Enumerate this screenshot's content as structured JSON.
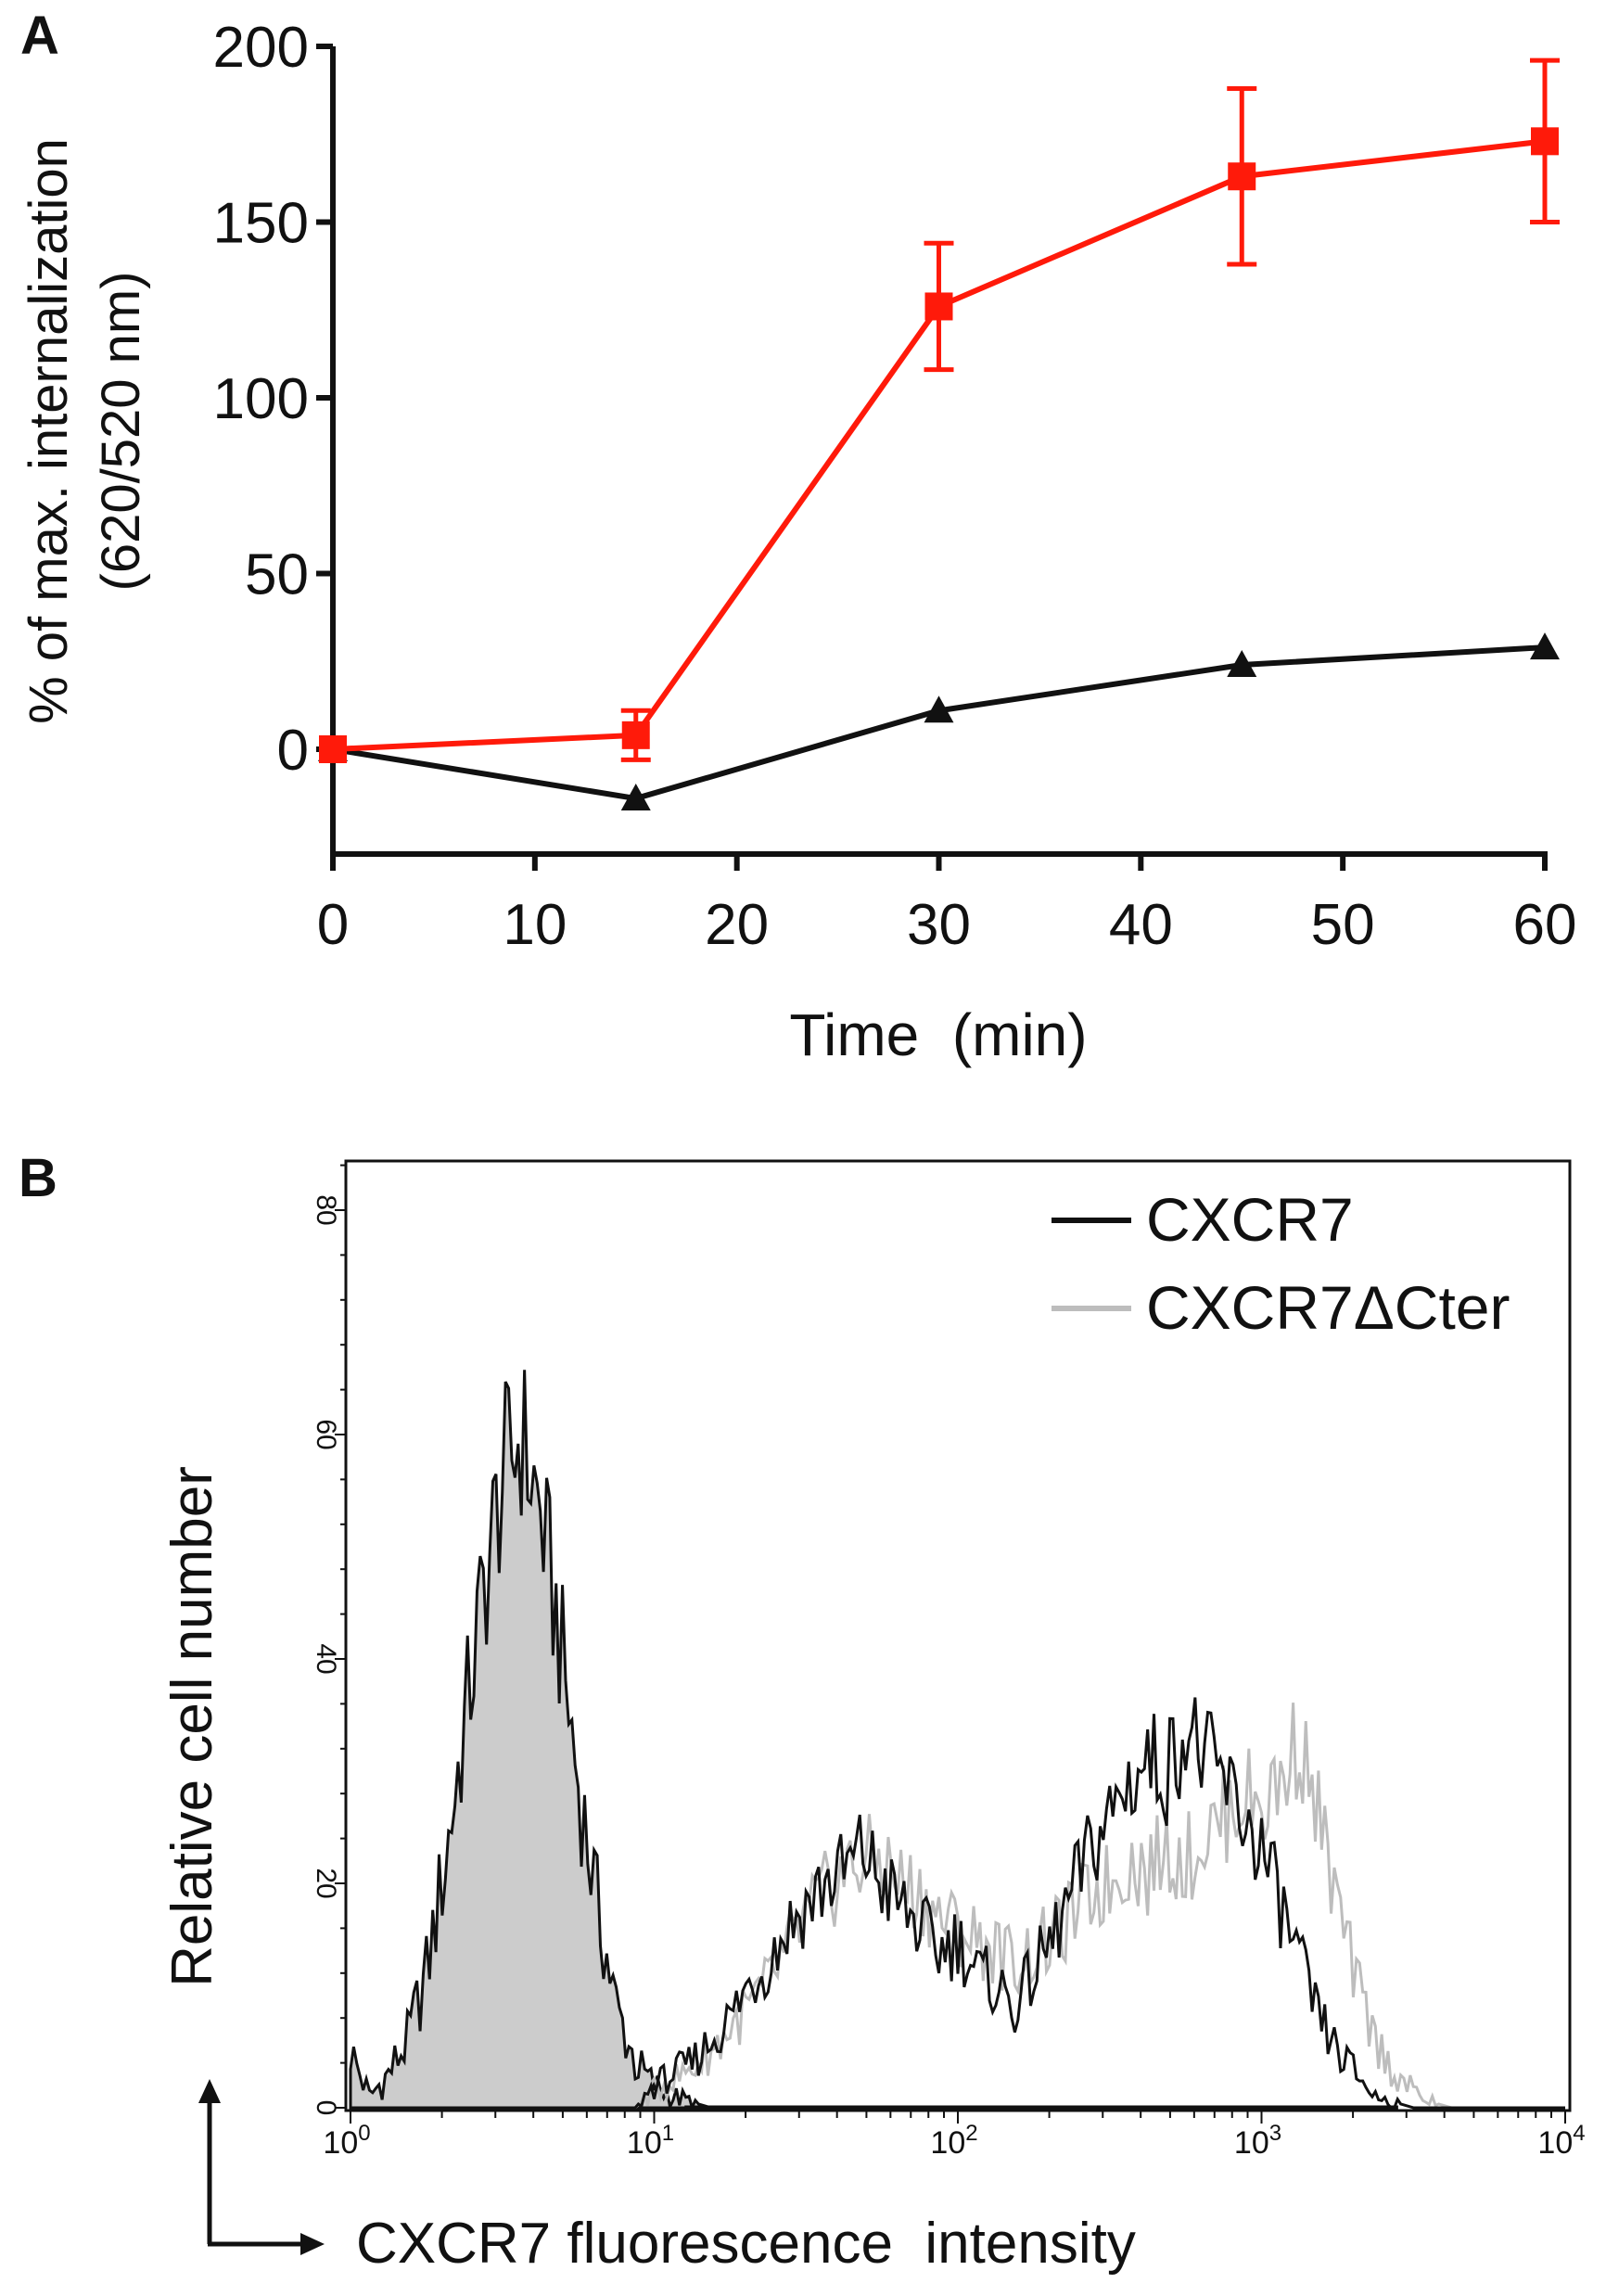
{
  "chart_data": [
    {
      "panel": "A",
      "type": "line",
      "title": "",
      "xlabel": "Time  (min)",
      "ylabel": "% of max. internalization",
      "ylabel2": "(620/520 nm)",
      "xlim": [
        0,
        60
      ],
      "ylim": [
        -30,
        200
      ],
      "xticks": [
        0,
        10,
        20,
        30,
        40,
        50,
        60
      ],
      "yticks": [
        0,
        50,
        100,
        150,
        200
      ],
      "grid": false,
      "x": [
        0,
        15,
        30,
        45,
        60
      ],
      "series": [
        {
          "name": "red series (squares)",
          "color": "#ff1a0a",
          "marker": "square",
          "values": [
            0,
            4,
            126,
            163,
            173
          ],
          "error": [
            0,
            7,
            18,
            25,
            23
          ]
        },
        {
          "name": "black series (triangles)",
          "color": "#111111",
          "marker": "triangle",
          "values": [
            0,
            -14,
            11,
            24,
            29
          ],
          "error": [
            0,
            0,
            0,
            0,
            0
          ]
        }
      ]
    },
    {
      "panel": "B",
      "type": "area",
      "title": "",
      "xlabel": "CXCR7 fluorescence  intensity",
      "ylabel": "Relative cell number",
      "xscale": "log",
      "xlim_log10": [
        0,
        4
      ],
      "ylim": [
        0,
        85
      ],
      "xticks": [
        {
          "base": "10",
          "exp": "0"
        },
        {
          "base": "10",
          "exp": "1"
        },
        {
          "base": "10",
          "exp": "2"
        },
        {
          "base": "10",
          "exp": "3"
        },
        {
          "base": "10",
          "exp": "4"
        }
      ],
      "yticks": [
        "0",
        "20",
        "40",
        "60",
        "80"
      ],
      "legend_position": "top-right",
      "bin_log10_step": 0.0625,
      "control": {
        "name": "control (filled)",
        "fill": "#cccccc",
        "values": [
          5,
          1,
          3,
          6,
          12,
          22,
          34,
          46,
          56,
          60,
          53,
          42,
          29,
          18,
          9,
          4,
          2,
          1,
          0.5,
          0,
          0,
          0,
          0,
          0,
          0,
          0,
          0,
          0,
          0,
          0,
          0,
          0,
          0,
          0,
          0,
          0,
          0,
          0,
          0,
          0,
          0,
          0,
          0,
          0,
          0,
          0,
          0,
          0,
          0,
          0,
          0,
          0,
          0,
          0,
          0,
          0,
          0,
          0,
          0,
          0,
          0,
          0,
          0,
          0,
          0
        ]
      },
      "series": [
        {
          "name": "CXCR7",
          "color": "#111111",
          "values": [
            0,
            0,
            0,
            0,
            0,
            0,
            0,
            0,
            0,
            0,
            0,
            0,
            0,
            0,
            0,
            0,
            2,
            3,
            4,
            6,
            8,
            11,
            13,
            16,
            18,
            20,
            21,
            23,
            20,
            18,
            16,
            14,
            15,
            12,
            11,
            9,
            12,
            15,
            19,
            23,
            26,
            29,
            31,
            30,
            34,
            31,
            29,
            26,
            23,
            18,
            13,
            8,
            5,
            3,
            1,
            0.5,
            0,
            0,
            0,
            0,
            0,
            0,
            0,
            0,
            0
          ]
        },
        {
          "name": "CXCR7ΔCter",
          "color": "#bdbdbd",
          "values": [
            0,
            0,
            0,
            0,
            0,
            0,
            0,
            0,
            0,
            0,
            0,
            0,
            0,
            0,
            0,
            0,
            1.5,
            2.5,
            3.5,
            5,
            7,
            9,
            11,
            14,
            17,
            19,
            21,
            22,
            22,
            20,
            19,
            17,
            16,
            15,
            14,
            13,
            14,
            15,
            17,
            19,
            20,
            22,
            21,
            23,
            22,
            24,
            26,
            28,
            27,
            29,
            33,
            26,
            18,
            11,
            6,
            3,
            1.5,
            0.5,
            0,
            0,
            0,
            0,
            0,
            0,
            0
          ]
        }
      ]
    }
  ],
  "panels": {
    "a": "A",
    "b": "B"
  }
}
